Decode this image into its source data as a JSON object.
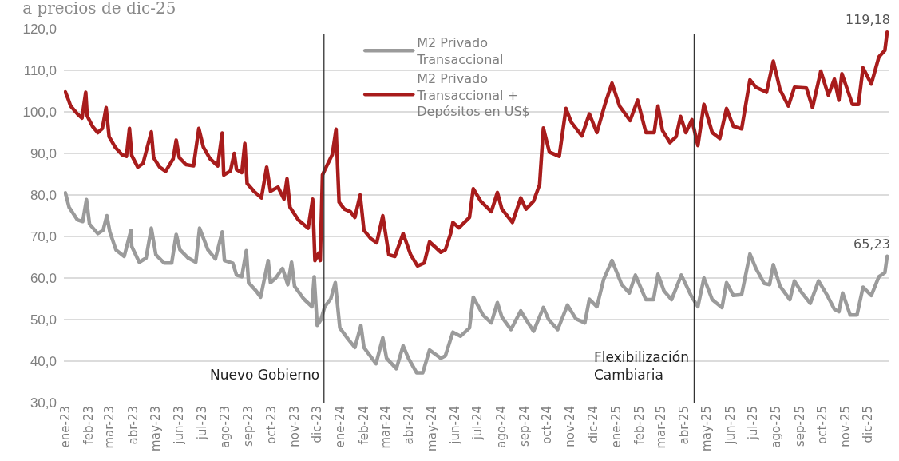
{
  "chart_data": {
    "type": "line",
    "subtitle": "a precios de dic-25",
    "xlim": [
      "2022-12-30",
      "2025-12-29"
    ],
    "ylim": [
      30,
      120
    ],
    "yticks": [
      {
        "value": 30,
        "label": "30,0"
      },
      {
        "value": 40,
        "label": "40,0"
      },
      {
        "value": 50,
        "label": "50,0"
      },
      {
        "value": 60,
        "label": "60,0"
      },
      {
        "value": 70,
        "label": "70,0"
      },
      {
        "value": 80,
        "label": "80,0"
      },
      {
        "value": 90,
        "label": "90,0"
      },
      {
        "value": 100,
        "label": "100,0"
      },
      {
        "value": 110,
        "label": "110,0"
      },
      {
        "value": 120,
        "label": "120,0"
      }
    ],
    "xticks": [
      {
        "value": "2023-01-01",
        "label": "ene-23"
      },
      {
        "value": "2023-02-01",
        "label": "feb-23"
      },
      {
        "value": "2023-03-01",
        "label": "mar-23"
      },
      {
        "value": "2023-04-01",
        "label": "abr-23"
      },
      {
        "value": "2023-05-01",
        "label": "may-23"
      },
      {
        "value": "2023-06-01",
        "label": "jun-23"
      },
      {
        "value": "2023-07-01",
        "label": "jul-23"
      },
      {
        "value": "2023-08-01",
        "label": "ago-23"
      },
      {
        "value": "2023-09-01",
        "label": "sep-23"
      },
      {
        "value": "2023-10-01",
        "label": "oct-23"
      },
      {
        "value": "2023-11-01",
        "label": "nov-23"
      },
      {
        "value": "2023-12-01",
        "label": "dic-23"
      },
      {
        "value": "2024-01-01",
        "label": "ene-24"
      },
      {
        "value": "2024-02-01",
        "label": "feb-24"
      },
      {
        "value": "2024-03-01",
        "label": "mar-24"
      },
      {
        "value": "2024-04-01",
        "label": "abr-24"
      },
      {
        "value": "2024-05-01",
        "label": "may-24"
      },
      {
        "value": "2024-06-01",
        "label": "jun-24"
      },
      {
        "value": "2024-07-01",
        "label": "jul-24"
      },
      {
        "value": "2024-08-01",
        "label": "ago-24"
      },
      {
        "value": "2024-09-01",
        "label": "sep-24"
      },
      {
        "value": "2024-10-01",
        "label": "oct-24"
      },
      {
        "value": "2024-11-01",
        "label": "nov-24"
      },
      {
        "value": "2024-12-01",
        "label": "dic-24"
      },
      {
        "value": "2025-01-01",
        "label": "ene-25"
      },
      {
        "value": "2025-02-01",
        "label": "feb-25"
      },
      {
        "value": "2025-03-01",
        "label": "mar-25"
      },
      {
        "value": "2025-04-01",
        "label": "abr-25"
      },
      {
        "value": "2025-05-01",
        "label": "may-25"
      },
      {
        "value": "2025-06-01",
        "label": "jun-25"
      },
      {
        "value": "2025-07-01",
        "label": "jul-25"
      },
      {
        "value": "2025-08-01",
        "label": "ago-25"
      },
      {
        "value": "2025-09-01",
        "label": "sep-25"
      },
      {
        "value": "2025-10-01",
        "label": "oct-25"
      },
      {
        "value": "2025-11-01",
        "label": "nov-25"
      },
      {
        "value": "2025-12-01",
        "label": "dic-25"
      }
    ],
    "grid": "y",
    "legend": "top",
    "marker": "none",
    "line_style": "solid",
    "series": [
      {
        "name": "M2 Privado\nTransaccional",
        "color": "#9b9b9b",
        "x": [
          "2023-01-01",
          "2023-01-06",
          "2023-01-17",
          "2023-01-24",
          "2023-01-29",
          "2023-02-02",
          "2023-02-13",
          "2023-02-20",
          "2023-02-25",
          "2023-03-01",
          "2023-03-09",
          "2023-03-20",
          "2023-03-29",
          "2023-03-30",
          "2023-04-09",
          "2023-04-18",
          "2023-04-25",
          "2023-05-01",
          "2023-05-12",
          "2023-05-22",
          "2023-05-28",
          "2023-06-02",
          "2023-06-13",
          "2023-06-23",
          "2023-06-28",
          "2023-07-09",
          "2023-07-19",
          "2023-07-28",
          "2023-07-31",
          "2023-08-11",
          "2023-08-16",
          "2023-08-23",
          "2023-08-29",
          "2023-09-01",
          "2023-09-11",
          "2023-09-17",
          "2023-09-27",
          "2023-09-30",
          "2023-10-07",
          "2023-10-16",
          "2023-10-23",
          "2023-10-28",
          "2023-11-01",
          "2023-11-13",
          "2023-11-24",
          "2023-11-27",
          "2023-12-01",
          "2023-12-06",
          "2023-12-11",
          "2023-12-19",
          "2023-12-25",
          "2023-12-31",
          "2024-01-11",
          "2024-01-20",
          "2024-01-28",
          "2024-02-01",
          "2024-02-17",
          "2024-02-26",
          "2024-03-02",
          "2024-03-15",
          "2024-03-24",
          "2024-03-31",
          "2024-04-11",
          "2024-04-19",
          "2024-04-28",
          "2024-05-13",
          "2024-05-19",
          "2024-05-29",
          "2024-06-08",
          "2024-06-20",
          "2024-06-25",
          "2024-07-08",
          "2024-07-19",
          "2024-07-27",
          "2024-08-02",
          "2024-08-14",
          "2024-08-27",
          "2024-09-03",
          "2024-09-13",
          "2024-09-26",
          "2024-10-03",
          "2024-10-15",
          "2024-10-28",
          "2024-11-08",
          "2024-11-20",
          "2024-11-26",
          "2024-12-06",
          "2024-12-15",
          "2024-12-26",
          "2025-01-08",
          "2025-01-18",
          "2025-01-26",
          "2025-02-09",
          "2025-02-19",
          "2025-02-25",
          "2025-03-05",
          "2025-03-15",
          "2025-03-28",
          "2025-04-11",
          "2025-04-19",
          "2025-04-27",
          "2025-05-08",
          "2025-05-21",
          "2025-05-27",
          "2025-06-05",
          "2025-06-16",
          "2025-06-27",
          "2025-07-05",
          "2025-07-16",
          "2025-07-23",
          "2025-07-28",
          "2025-08-06",
          "2025-08-19",
          "2025-08-25",
          "2025-09-04",
          "2025-09-15",
          "2025-09-26",
          "2025-10-07",
          "2025-10-17",
          "2025-10-23",
          "2025-10-28",
          "2025-11-07",
          "2025-11-16",
          "2025-11-24",
          "2025-12-05",
          "2025-12-15",
          "2025-12-23",
          "2025-12-26"
        ],
        "values": [
          80.5,
          77.0,
          74.0,
          73.6,
          78.9,
          73.0,
          70.7,
          71.5,
          75.0,
          71.1,
          66.8,
          65.2,
          71.5,
          67.6,
          63.8,
          64.8,
          72.0,
          65.6,
          63.6,
          63.6,
          70.5,
          66.8,
          64.8,
          63.8,
          72.0,
          66.8,
          64.6,
          71.1,
          64.2,
          63.6,
          60.7,
          60.3,
          66.6,
          58.9,
          56.9,
          55.4,
          64.2,
          58.9,
          60.0,
          62.3,
          58.4,
          63.8,
          58.0,
          55.0,
          53.1,
          60.3,
          48.6,
          50.0,
          53.1,
          55.0,
          58.9,
          48.0,
          45.3,
          43.3,
          48.6,
          43.3,
          39.4,
          45.6,
          40.7,
          38.2,
          43.7,
          40.7,
          37.2,
          37.2,
          42.7,
          40.7,
          41.3,
          47.0,
          46.0,
          48.0,
          55.4,
          51.1,
          49.2,
          54.1,
          50.6,
          47.6,
          52.1,
          50.0,
          47.2,
          52.9,
          50.0,
          47.6,
          53.5,
          50.2,
          49.2,
          54.9,
          53.1,
          59.7,
          64.2,
          58.4,
          56.4,
          60.7,
          54.8,
          54.8,
          60.9,
          56.9,
          54.8,
          60.7,
          55.4,
          53.1,
          60.0,
          54.8,
          52.9,
          58.9,
          55.8,
          56.0,
          65.8,
          62.3,
          58.7,
          58.4,
          63.2,
          58.0,
          54.8,
          59.3,
          56.4,
          53.9,
          59.3,
          56.0,
          52.5,
          51.9,
          56.4,
          51.1,
          51.1,
          57.8,
          55.8,
          60.3,
          61.3,
          65.23
        ]
      },
      {
        "name": "M2 Privado\nTransaccional +\nDepósitos en US$",
        "color": "#a81c1c",
        "x": [
          "2023-01-01",
          "2023-01-04",
          "2023-01-08",
          "2023-01-17",
          "2023-01-23",
          "2023-01-28",
          "2023-01-30",
          "2023-02-06",
          "2023-02-13",
          "2023-02-19",
          "2023-02-24",
          "2023-02-28",
          "2023-03-08",
          "2023-03-17",
          "2023-03-23",
          "2023-03-27",
          "2023-03-30",
          "2023-04-07",
          "2023-04-14",
          "2023-04-25",
          "2023-04-28",
          "2023-05-06",
          "2023-05-14",
          "2023-05-24",
          "2023-05-28",
          "2023-06-01",
          "2023-06-10",
          "2023-06-20",
          "2023-06-27",
          "2023-07-03",
          "2023-07-12",
          "2023-07-22",
          "2023-07-28",
          "2023-07-30",
          "2023-08-08",
          "2023-08-13",
          "2023-08-16",
          "2023-08-23",
          "2023-08-27",
          "2023-08-30",
          "2023-09-08",
          "2023-09-18",
          "2023-09-25",
          "2023-09-30",
          "2023-10-10",
          "2023-10-18",
          "2023-10-22",
          "2023-10-26",
          "2023-11-06",
          "2023-11-19",
          "2023-11-25",
          "2023-11-28",
          "2023-12-03",
          "2023-12-05",
          "2023-12-08",
          "2023-12-11",
          "2023-12-21",
          "2023-12-26",
          "2023-12-30",
          "2024-01-06",
          "2024-01-14",
          "2024-01-20",
          "2024-01-27",
          "2024-02-01",
          "2024-02-10",
          "2024-02-18",
          "2024-02-26",
          "2024-03-05",
          "2024-03-13",
          "2024-03-24",
          "2024-04-03",
          "2024-04-12",
          "2024-04-21",
          "2024-04-28",
          "2024-05-13",
          "2024-05-19",
          "2024-05-26",
          "2024-05-29",
          "2024-06-06",
          "2024-06-20",
          "2024-06-25",
          "2024-07-05",
          "2024-07-19",
          "2024-07-27",
          "2024-08-02",
          "2024-08-16",
          "2024-08-27",
          "2024-09-03",
          "2024-09-13",
          "2024-09-21",
          "2024-09-26",
          "2024-10-04",
          "2024-10-17",
          "2024-10-26",
          "2024-11-02",
          "2024-11-16",
          "2024-11-26",
          "2024-12-06",
          "2024-12-17",
          "2024-12-26",
          "2025-01-05",
          "2025-01-19",
          "2025-01-29",
          "2025-02-09",
          "2025-02-20",
          "2025-02-25",
          "2025-03-03",
          "2025-03-13",
          "2025-03-21",
          "2025-03-27",
          "2025-04-03",
          "2025-04-11",
          "2025-04-19",
          "2025-04-27",
          "2025-05-08",
          "2025-05-18",
          "2025-05-27",
          "2025-06-05",
          "2025-06-16",
          "2025-06-27",
          "2025-07-05",
          "2025-07-19",
          "2025-07-28",
          "2025-08-06",
          "2025-08-17",
          "2025-08-25",
          "2025-09-10",
          "2025-09-18",
          "2025-09-29",
          "2025-10-09",
          "2025-10-17",
          "2025-10-23",
          "2025-10-27",
          "2025-11-10",
          "2025-11-18",
          "2025-11-24",
          "2025-12-05",
          "2025-12-15",
          "2025-12-23",
          "2025-12-26"
        ],
        "values": [
          104.8,
          103.4,
          101.4,
          99.5,
          98.5,
          104.7,
          99.0,
          96.5,
          95.0,
          96.0,
          101.0,
          94.0,
          91.5,
          89.7,
          89.3,
          96.0,
          89.5,
          86.7,
          87.6,
          95.2,
          89.0,
          86.7,
          85.7,
          88.7,
          93.2,
          89.0,
          87.3,
          87.0,
          96.0,
          91.5,
          88.7,
          87.0,
          94.9,
          84.8,
          85.8,
          90.0,
          86.1,
          85.4,
          92.4,
          82.8,
          80.9,
          79.3,
          86.7,
          80.9,
          81.9,
          79.0,
          83.9,
          77.0,
          74.0,
          72.0,
          79.0,
          64.2,
          66.0,
          64.2,
          84.8,
          86.0,
          89.7,
          95.8,
          78.3,
          76.6,
          76.0,
          74.6,
          80.0,
          71.5,
          69.5,
          68.5,
          75.0,
          65.6,
          65.2,
          70.7,
          65.6,
          62.9,
          63.6,
          68.7,
          66.2,
          66.8,
          70.7,
          73.4,
          72.1,
          74.6,
          81.5,
          78.5,
          76.0,
          80.6,
          76.6,
          73.4,
          79.3,
          76.6,
          78.5,
          82.5,
          96.1,
          90.3,
          89.3,
          100.8,
          97.5,
          94.2,
          99.5,
          95.0,
          102.0,
          106.9,
          101.4,
          97.9,
          102.8,
          95.0,
          95.0,
          101.4,
          95.5,
          92.6,
          94.0,
          98.9,
          95.0,
          98.1,
          91.9,
          101.8,
          95.0,
          93.6,
          100.8,
          96.5,
          95.9,
          107.7,
          105.9,
          104.7,
          112.2,
          105.3,
          101.4,
          105.9,
          105.7,
          101.0,
          109.8,
          104.0,
          107.9,
          102.8,
          109.2,
          101.8,
          101.8,
          110.6,
          106.7,
          113.2,
          114.8,
          119.18
        ]
      }
    ],
    "ref_lines": [
      {
        "axis": "x",
        "value": "2023-12-10",
        "label": "Nuevo Gobierno",
        "color": "#333333"
      },
      {
        "axis": "x",
        "value": "2025-04-14",
        "label": "Flexibilización\nCambiaria",
        "color": "#333333"
      }
    ],
    "annotations": [
      {
        "text": "119,18",
        "x": "2025-12-26",
        "y": 119.18
      },
      {
        "text": "65,23",
        "x": "2025-12-26",
        "y": 65.23
      }
    ]
  }
}
